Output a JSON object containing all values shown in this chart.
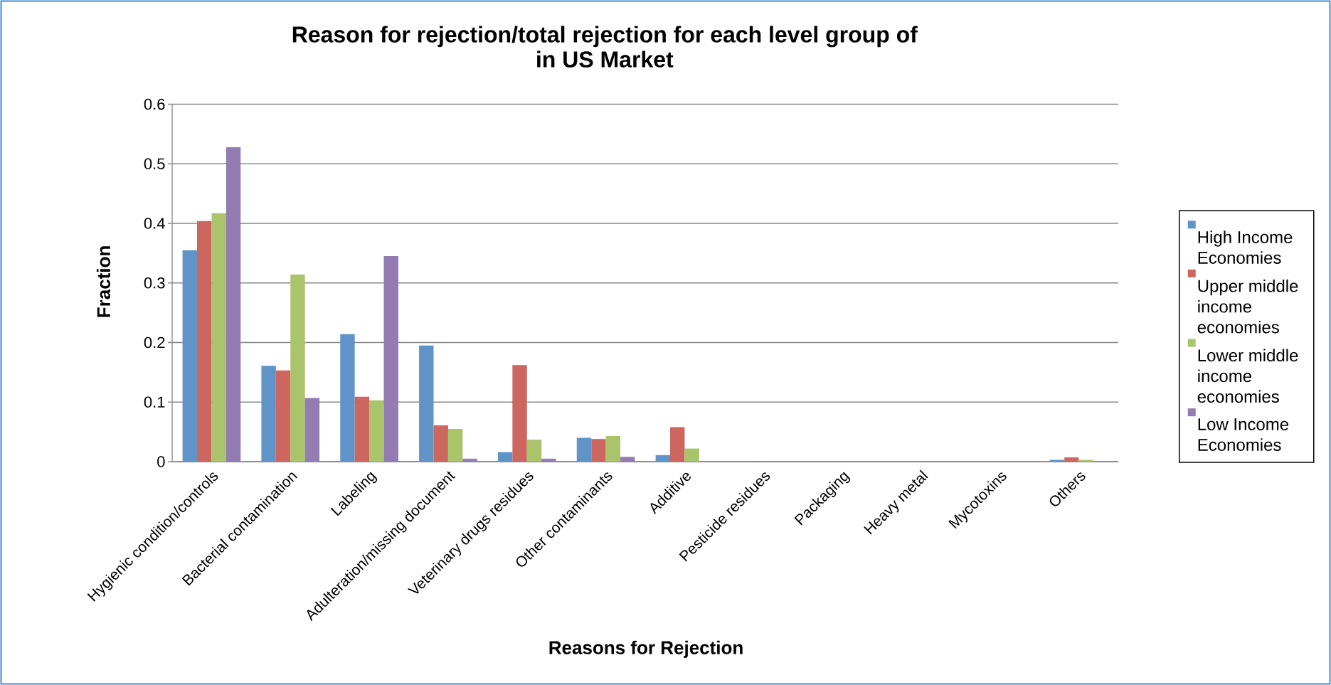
{
  "chart_data": {
    "type": "bar",
    "title": "Reason for rejection/total rejection for each level group of in US Market",
    "xlabel": "Reasons for Rejection",
    "ylabel": "Fraction",
    "categories": [
      "Hygienic condition/controls",
      "Bacterial contamination",
      "Labeling",
      "Adulteration/missing document",
      "Veterinary drugs residues",
      "Other contaminants",
      "Additive",
      "Pesticide residues",
      "Packaging",
      "Heavy metal",
      "Mycotoxins",
      "Others"
    ],
    "series": [
      {
        "name": "High Income Economies",
        "color": "#6094c8",
        "values": [
          0.355,
          0.161,
          0.214,
          0.195,
          0.016,
          0.04,
          0.011,
          0,
          0,
          0,
          0,
          0.003
        ]
      },
      {
        "name": "Upper middle income economies",
        "color": "#cd665f",
        "values": [
          0.404,
          0.153,
          0.109,
          0.061,
          0.162,
          0.038,
          0.058,
          0.001,
          0,
          0,
          0,
          0.007
        ]
      },
      {
        "name": "Lower middle income economies",
        "color": "#aac46c",
        "values": [
          0.417,
          0.314,
          0.103,
          0.055,
          0.037,
          0.043,
          0.022,
          0,
          0,
          0,
          0,
          0.003
        ]
      },
      {
        "name": "Low Income Economies",
        "color": "#937cb2",
        "values": [
          0.528,
          0.107,
          0.345,
          0.005,
          0.005,
          0.008,
          0,
          0,
          0,
          0,
          0,
          0
        ]
      }
    ],
    "ylim": [
      0,
      0.6
    ],
    "yticks": [
      0,
      0.1,
      0.2,
      0.3,
      0.4,
      0.5,
      0.6
    ],
    "grid": "y",
    "legend": "right"
  }
}
